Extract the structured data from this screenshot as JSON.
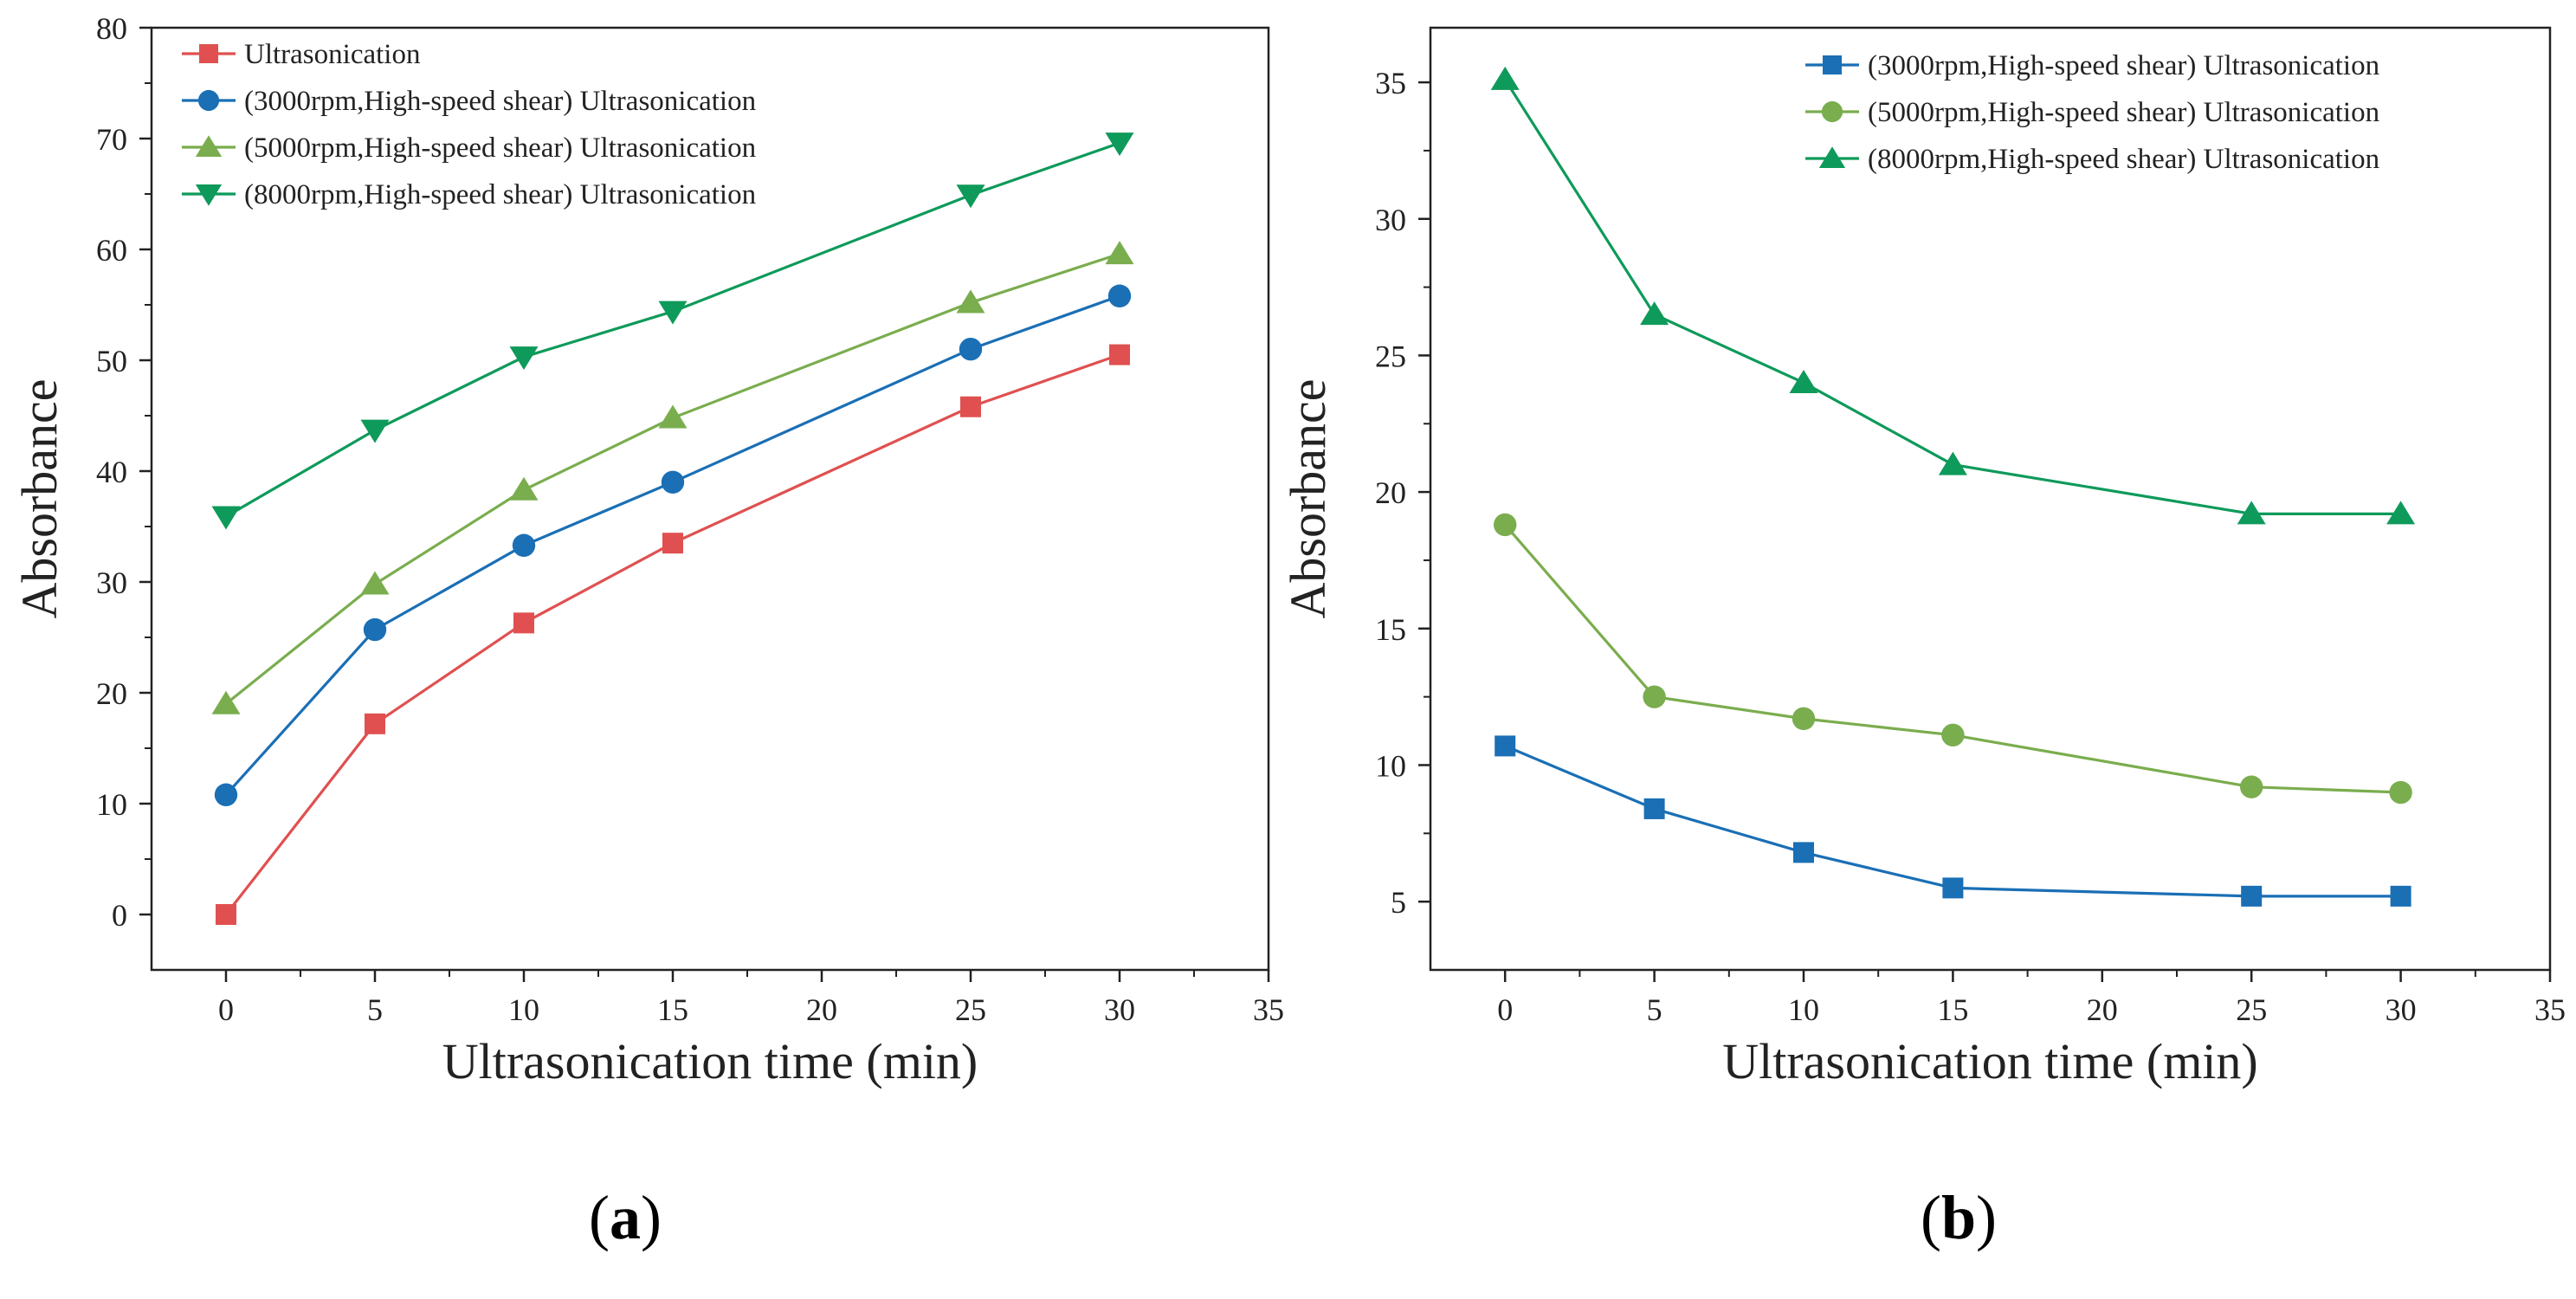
{
  "chart_data": [
    {
      "type": "line",
      "panel_label": "a",
      "xlabel": "Ultrasonication time (min)",
      "ylabel": "Absorbance",
      "xlim": [
        -2.5,
        35
      ],
      "ylim": [
        -5,
        80
      ],
      "xticks": [
        0,
        5,
        10,
        15,
        20,
        25,
        30,
        35
      ],
      "yticks": [
        0,
        10,
        20,
        30,
        40,
        50,
        60,
        70,
        80
      ],
      "legend_position": "top-left",
      "x": [
        0,
        5,
        10,
        15,
        25,
        30
      ],
      "series": [
        {
          "name": "Ultrasonication",
          "color": "#e05050",
          "marker": "square",
          "values": [
            0,
            17.2,
            26.3,
            33.5,
            45.8,
            50.5
          ]
        },
        {
          "name": "(3000rpm,High-speed shear) Ultrasonication",
          "color": "#1a6fb5",
          "marker": "circle",
          "values": [
            10.8,
            25.7,
            33.3,
            39.0,
            51.0,
            55.8
          ]
        },
        {
          "name": "(5000rpm,High-speed shear) Ultrasonication",
          "color": "#7aad4e",
          "marker": "triangle-up",
          "values": [
            19.0,
            29.8,
            38.3,
            44.8,
            55.2,
            59.6
          ]
        },
        {
          "name": "(8000rpm,High-speed shear) Ultrasonication",
          "color": "#0e9a5a",
          "marker": "triangle-down",
          "values": [
            35.9,
            43.7,
            50.3,
            54.4,
            64.9,
            69.6
          ]
        }
      ]
    },
    {
      "type": "line",
      "panel_label": "b",
      "xlabel": "Ultrasonication time (min)",
      "ylabel": "Absorbance",
      "xlim": [
        -2.5,
        35
      ],
      "ylim": [
        2.5,
        37
      ],
      "xticks": [
        0,
        5,
        10,
        15,
        20,
        25,
        30,
        35
      ],
      "yticks": [
        5,
        10,
        15,
        20,
        25,
        30,
        35
      ],
      "legend_position": "top-right",
      "x": [
        0,
        5,
        10,
        15,
        25,
        30
      ],
      "series": [
        {
          "name": "(3000rpm,High-speed shear) Ultrasonication",
          "color": "#1a6fb5",
          "marker": "square",
          "values": [
            10.7,
            8.4,
            6.8,
            5.5,
            5.2,
            5.2
          ]
        },
        {
          "name": "(5000rpm,High-speed shear) Ultrasonication",
          "color": "#7aad4e",
          "marker": "circle",
          "values": [
            18.8,
            12.5,
            11.7,
            11.1,
            9.2,
            9.0
          ]
        },
        {
          "name": "(8000rpm,High-speed shear) Ultrasonication",
          "color": "#0e9a5a",
          "marker": "triangle-up",
          "values": [
            35.1,
            26.5,
            24.0,
            21.0,
            19.2,
            19.2
          ]
        }
      ]
    }
  ]
}
